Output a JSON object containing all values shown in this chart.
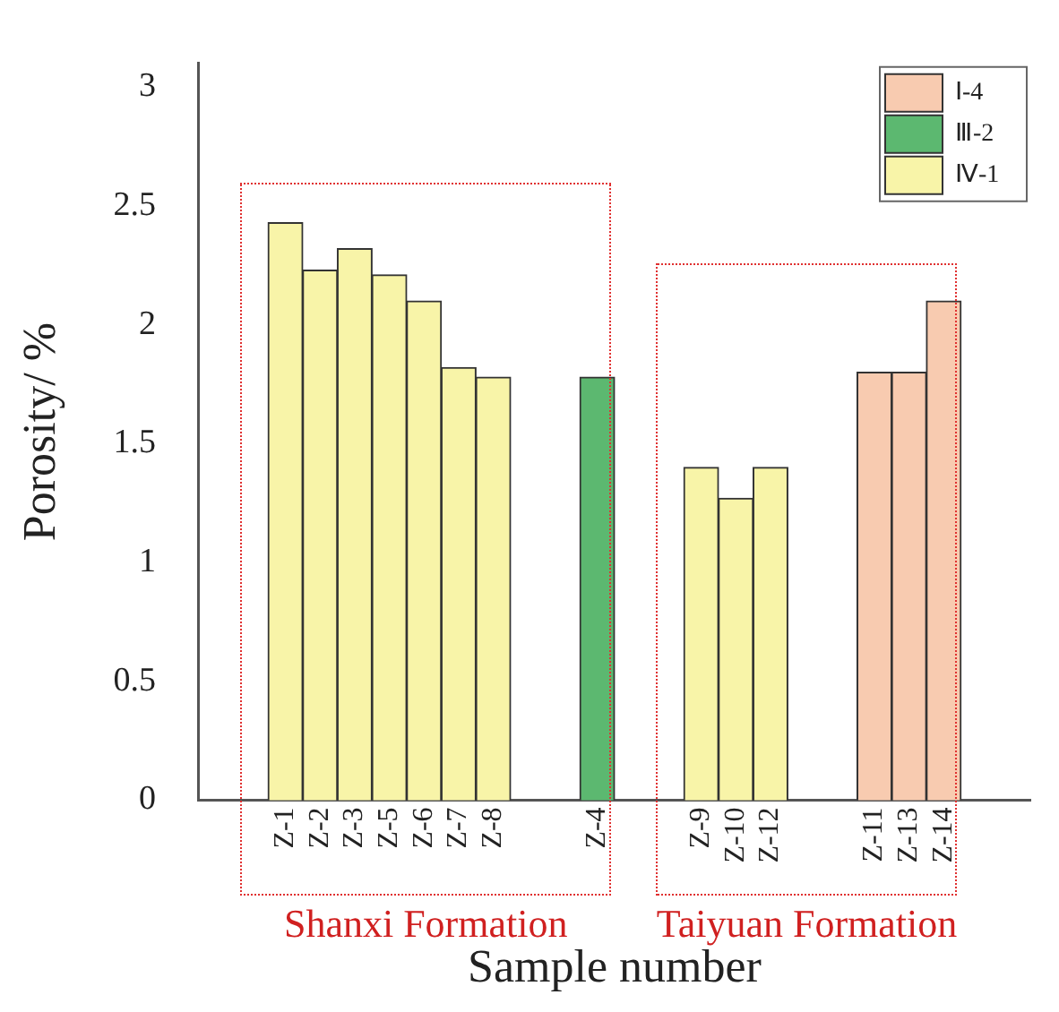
{
  "chart_data": {
    "type": "bar",
    "xlabel": "Sample number",
    "ylabel": "Porosity/ %",
    "categories": [
      null,
      null,
      "Z-1",
      "Z-2",
      "Z-3",
      "Z-5",
      "Z-6",
      "Z-7",
      "Z-8",
      null,
      null,
      "Z-4",
      null,
      null,
      "Z-9",
      "Z-10",
      "Z-12",
      null,
      null,
      "Z-11",
      "Z-13",
      "Z-14",
      null,
      null
    ],
    "series": [
      {
        "name": "Ⅰ-4",
        "color": "#f8cbb0",
        "values": [
          null,
          null,
          null,
          null,
          null,
          null,
          null,
          null,
          null,
          null,
          null,
          null,
          null,
          null,
          null,
          null,
          null,
          null,
          null,
          1.8,
          1.8,
          2.1,
          null,
          null
        ]
      },
      {
        "name": "Ⅲ-2",
        "color": "#5cb870",
        "values": [
          null,
          null,
          null,
          null,
          null,
          null,
          null,
          null,
          null,
          null,
          null,
          1.78,
          null,
          null,
          null,
          null,
          null,
          null,
          null,
          null,
          null,
          null,
          null,
          null
        ]
      },
      {
        "name": "Ⅳ-1",
        "color": "#f8f4a8",
        "values": [
          null,
          null,
          2.43,
          2.23,
          2.32,
          2.21,
          2.1,
          1.82,
          1.78,
          null,
          null,
          null,
          null,
          null,
          1.4,
          1.27,
          1.4,
          null,
          null,
          null,
          null,
          null,
          null,
          null
        ]
      }
    ],
    "ylim": [
      0,
      3.1
    ],
    "yticks": [
      0,
      0.5,
      1,
      1.5,
      2,
      2.5,
      3
    ],
    "grid": false,
    "legend": "top right",
    "annotations": [
      "Shanxi Formation",
      "Taiyuan Formation"
    ]
  }
}
